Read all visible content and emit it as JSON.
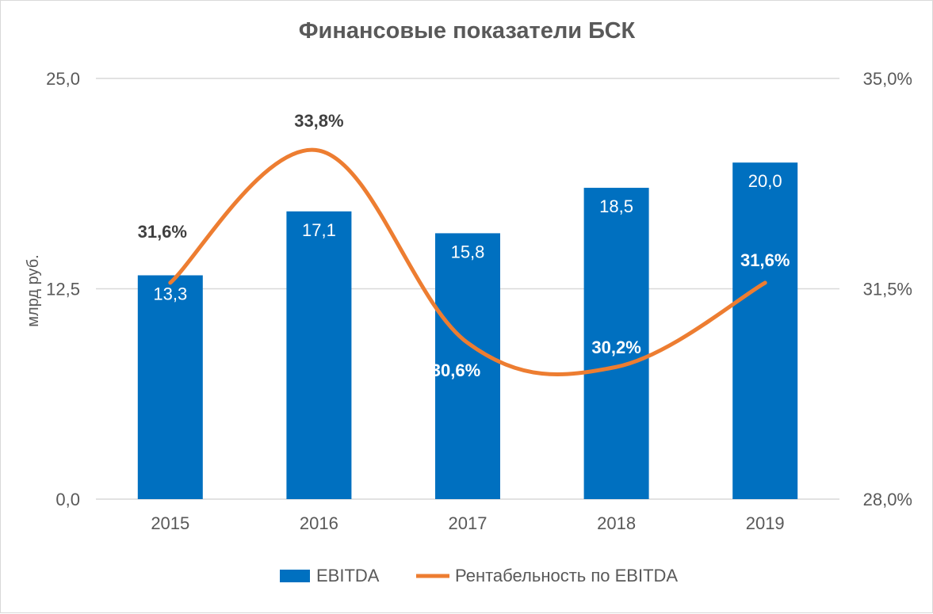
{
  "chart_data": {
    "type": "bar",
    "title": "Финансовые показатели БСК",
    "categories": [
      "2015",
      "2016",
      "2017",
      "2018",
      "2019"
    ],
    "series": [
      {
        "name": "EBITDA",
        "kind": "bar",
        "axis": "left",
        "values": [
          13.3,
          17.1,
          15.8,
          18.5,
          20.0
        ],
        "labels": [
          "13,3",
          "17,1",
          "15,8",
          "18,5",
          "20,0"
        ],
        "color": "#0070c0"
      },
      {
        "name": "Рентабельность по EBITDA",
        "kind": "line",
        "smooth": true,
        "axis": "right",
        "values": [
          31.6,
          33.8,
          30.6,
          30.2,
          31.6
        ],
        "labels": [
          "31,6%",
          "33,8%",
          "30,6%",
          "30,2%",
          "31,6%"
        ],
        "color": "#ed7d31"
      }
    ],
    "ylabel": "млрд руб.",
    "ylim": [
      0,
      25
    ],
    "y2lim": [
      28,
      35
    ],
    "yticks": [
      "0,0",
      "12,5",
      "25,0"
    ],
    "y2ticks": [
      "28,0%",
      "31,5%",
      "35,0%"
    ],
    "grid": true,
    "legend": "bottom"
  }
}
